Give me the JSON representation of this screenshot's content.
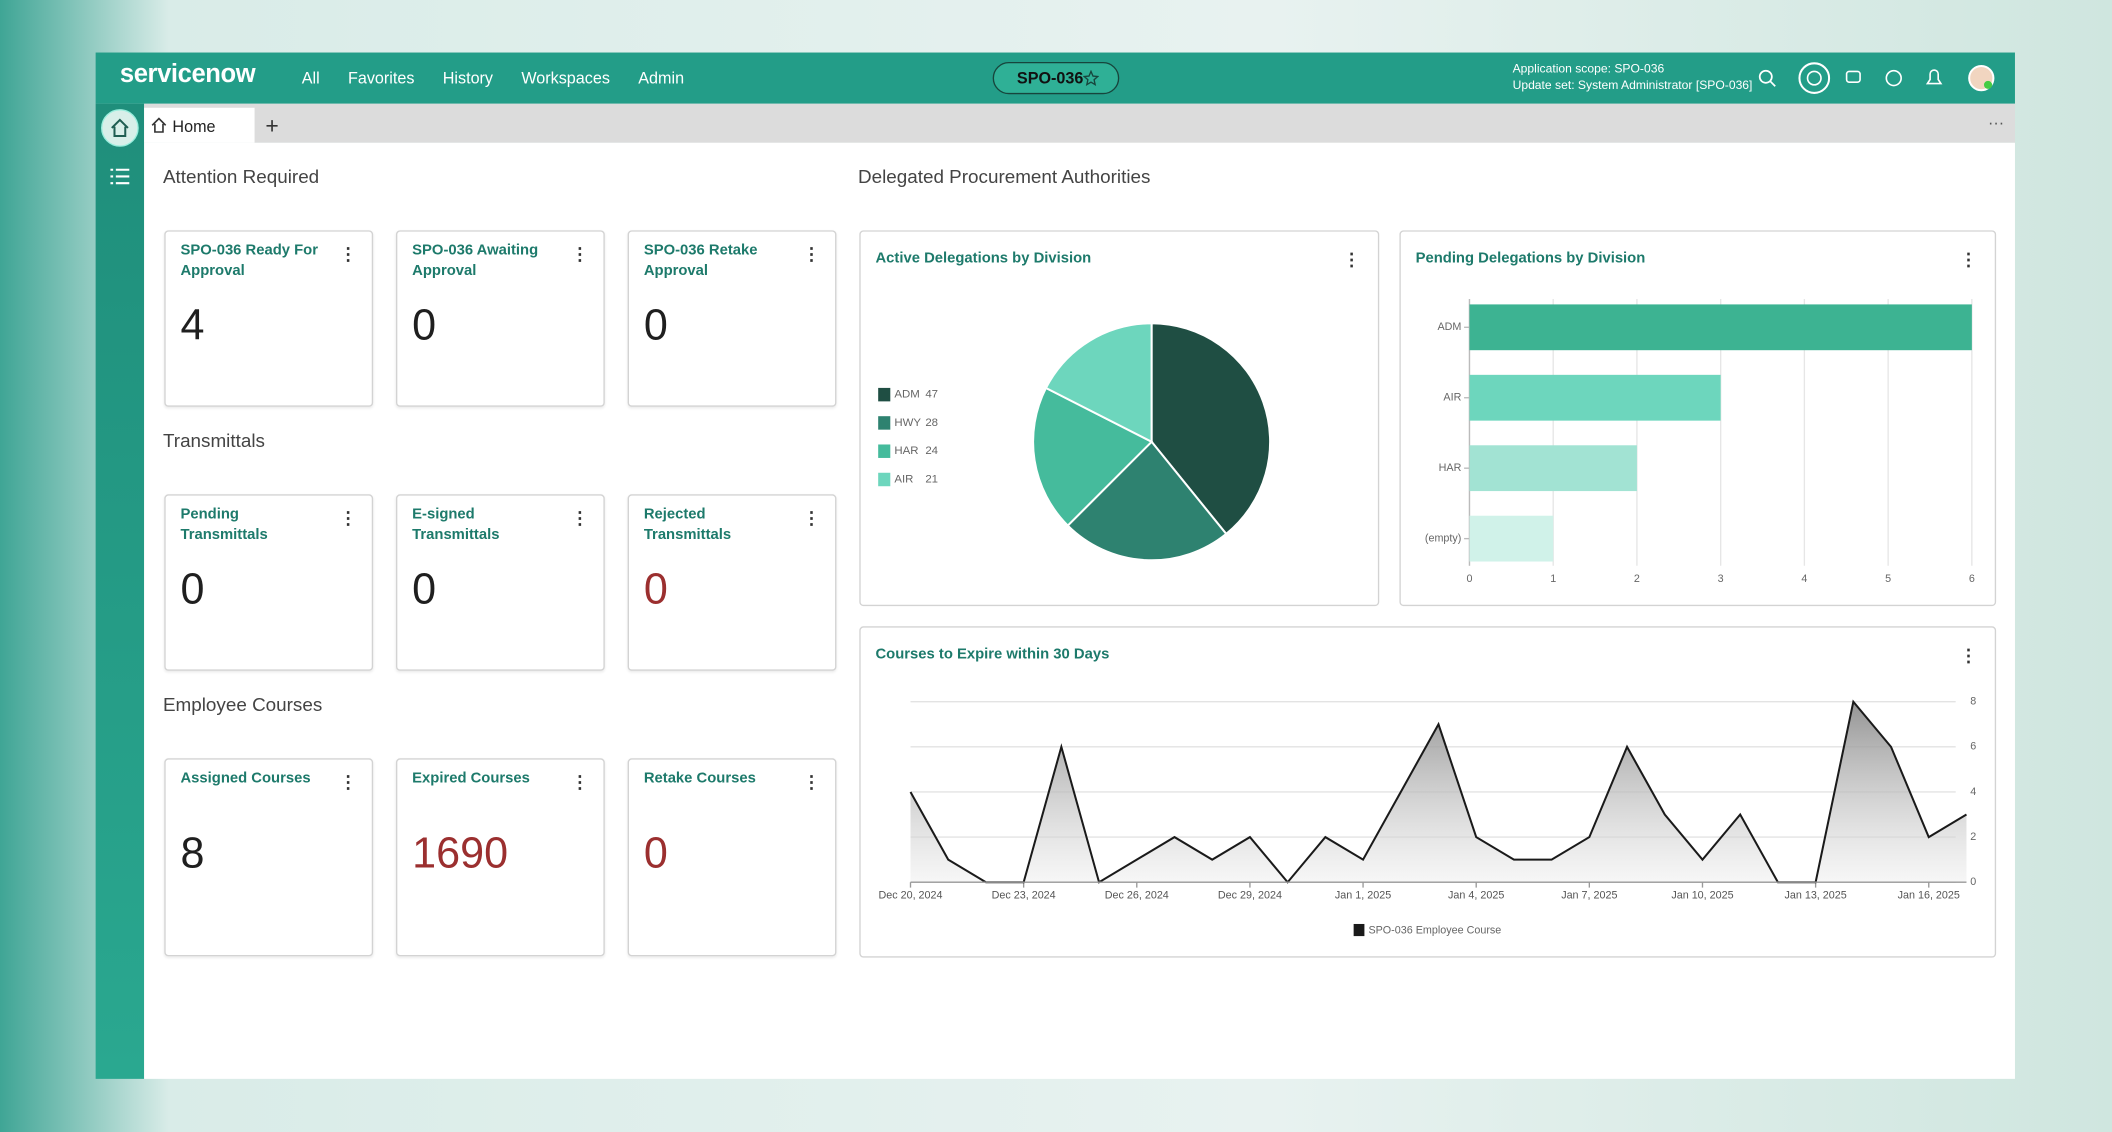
{
  "nav": {
    "logo": "servicenow",
    "menu": [
      "All",
      "Favorites",
      "History",
      "Workspaces",
      "Admin"
    ],
    "record": "SPO-036",
    "scope": "Application scope: SPO-036",
    "update_set": "Update set: System Administrator [SPO-036]"
  },
  "tabs": [
    "Home"
  ],
  "sections": [
    {
      "title": "Attention Required",
      "cards": [
        {
          "title": "SPO-036 Ready For Approval",
          "value": 4,
          "color": "#1f1f1f"
        },
        {
          "title": "SPO-036 Awaiting Approval",
          "value": 0,
          "color": "#1f1f1f"
        },
        {
          "title": "SPO-036 Retake Approval",
          "value": 0,
          "color": "#1f1f1f"
        }
      ]
    },
    {
      "title": "Transmittals",
      "cards": [
        {
          "title": "Pending Transmittals",
          "value": 0,
          "color": "#1f1f1f"
        },
        {
          "title": "E-signed Transmittals",
          "value": 0,
          "color": "#1f1f1f"
        },
        {
          "title": "Rejected Transmittals",
          "value": 0,
          "color": "#9b2f2f"
        }
      ]
    },
    {
      "title": "Employee Courses",
      "cards": [
        {
          "title": "Assigned Courses",
          "value": 8,
          "color": "#1f1f1f"
        },
        {
          "title": "Expired Courses",
          "value": 1690,
          "color": "#9b2f2f"
        },
        {
          "title": "Retake Courses",
          "value": 0,
          "color": "#9b2f2f"
        }
      ]
    }
  ],
  "delegations_title": "Delegated Procurement Authorities",
  "chart_data": [
    {
      "type": "pie",
      "title": "Active Delegations by Division",
      "categories": [
        "ADM",
        "HWY",
        "HAR",
        "AIR"
      ],
      "values": [
        47,
        28,
        24,
        21
      ],
      "colors": [
        "#1f4e43",
        "#2e8270",
        "#45bb9c",
        "#6dd6bd"
      ]
    },
    {
      "type": "hbar",
      "title": "Pending Delegations by Division",
      "categories": [
        "ADM",
        "AIR",
        "HAR",
        "(empty)"
      ],
      "values": [
        6,
        3,
        2,
        1
      ],
      "colors": [
        "#3db392",
        "#6dd6bd",
        "#a2e3d3",
        "#d0f2e9"
      ],
      "xlim": [
        0,
        6
      ],
      "xticks": [
        0,
        1,
        2,
        3,
        4,
        5,
        6
      ],
      "grid": true
    },
    {
      "type": "area",
      "title": "Courses to Expire within 30 Days",
      "categories": [
        "Dec 20, 2024",
        null,
        null,
        "Dec 23, 2024",
        null,
        null,
        "Dec 26, 2024",
        null,
        null,
        "Dec 29, 2024",
        null,
        null,
        "Jan 1, 2025",
        null,
        null,
        "Jan 4, 2025",
        null,
        null,
        "Jan 7, 2025",
        null,
        null,
        "Jan 10, 2025",
        null,
        null,
        "Jan 13, 2025",
        null,
        null,
        "Jan 16, 2025",
        null
      ],
      "series": [
        {
          "name": "SPO-036 Employee Course",
          "color": "#1a1a1a",
          "values": [
            4,
            1,
            0,
            0,
            6,
            0,
            1,
            2,
            1,
            2,
            0,
            2,
            1,
            4,
            7,
            2,
            1,
            1,
            2,
            6,
            3,
            1,
            3,
            0,
            0,
            8,
            6,
            2,
            3
          ]
        }
      ],
      "ylim": [
        0,
        8
      ],
      "yticks": [
        0,
        2,
        4,
        6,
        8
      ],
      "grid": true
    }
  ]
}
